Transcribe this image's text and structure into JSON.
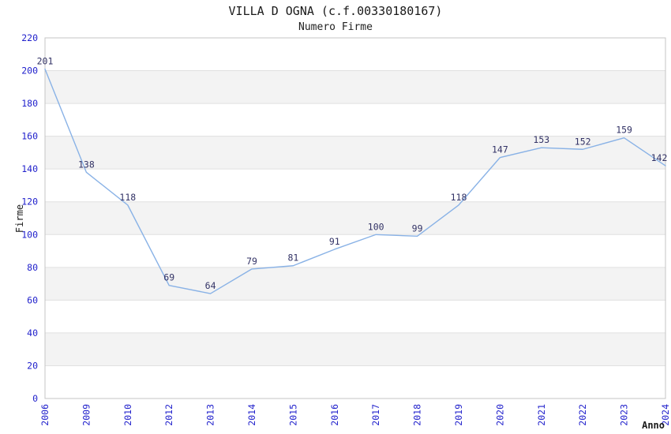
{
  "chart_data": {
    "type": "line",
    "title": "VILLA D OGNA (c.f.00330180167)",
    "subtitle": "Numero Firme",
    "xlabel": "Anno",
    "ylabel": "Firme",
    "categories": [
      "2006",
      "2009",
      "2010",
      "2012",
      "2013",
      "2014",
      "2015",
      "2016",
      "2017",
      "2018",
      "2019",
      "2020",
      "2021",
      "2022",
      "2023",
      "2024"
    ],
    "values": [
      201,
      138,
      118,
      69,
      64,
      79,
      81,
      91,
      100,
      99,
      118,
      147,
      153,
      152,
      159,
      142
    ],
    "ylim": [
      0,
      220
    ],
    "ytick_step": 20,
    "yticks": [
      0,
      20,
      40,
      60,
      80,
      100,
      120,
      140,
      160,
      180,
      200,
      220
    ],
    "grid": "horizontal-bands",
    "legend": "none",
    "colors": {
      "line": "#89b2e6",
      "data_label": "#333366",
      "tick_label": "#2222cc",
      "band_gray": "#f3f3f3",
      "band_white": "#ffffff",
      "gridline": "#e0e0e0",
      "plot_border": "#c4c4c4",
      "axis_title": "#1a1a1a",
      "title": "#1a1a1a"
    }
  }
}
